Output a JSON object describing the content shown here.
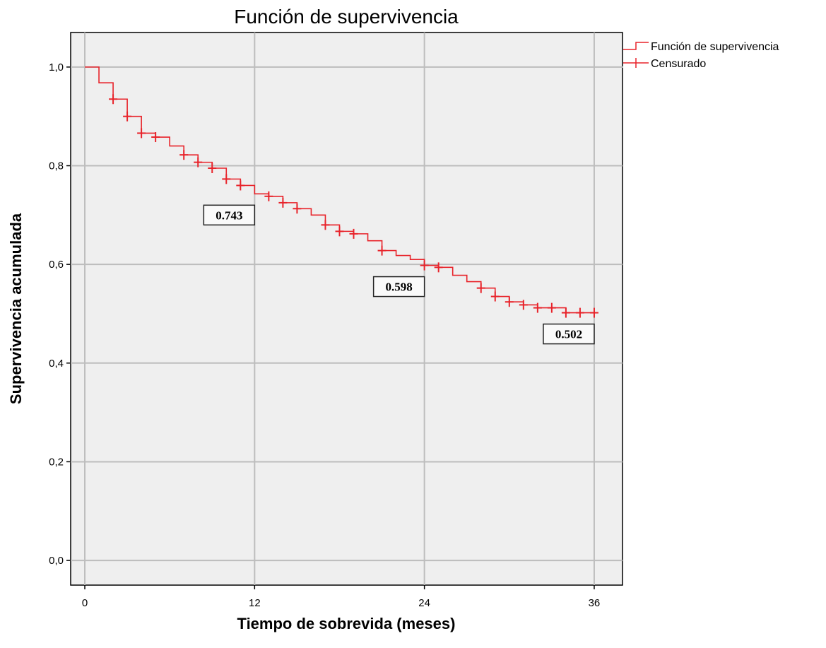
{
  "chart_data": {
    "type": "line",
    "title": "Función de supervivencia",
    "xlabel": "Tiempo de sobrevida (meses)",
    "ylabel": "Supervivencia acumulada",
    "xlim": [
      -1,
      38
    ],
    "ylim": [
      -0.05,
      1.07
    ],
    "x_ticks": [
      0,
      12,
      24,
      36
    ],
    "x_tick_labels": [
      "0",
      "12",
      "24",
      "36"
    ],
    "y_ticks": [
      0.0,
      0.2,
      0.4,
      0.6,
      0.8,
      1.0
    ],
    "y_tick_labels": [
      "0,0",
      "0,2",
      "0,4",
      "0,6",
      "0,8",
      "1,0"
    ],
    "grid": true,
    "legend_position": "outside-top-right",
    "series_color": "#e8232a",
    "plot_background": "#efefef",
    "legend": [
      {
        "label": "Función de supervivencia",
        "symbol": "step"
      },
      {
        "label": "Censurado",
        "symbol": "cross"
      }
    ],
    "survival_steps": [
      {
        "x": 0,
        "y": 1.0
      },
      {
        "x": 1,
        "y": 0.968
      },
      {
        "x": 2,
        "y": 0.935
      },
      {
        "x": 3,
        "y": 0.9
      },
      {
        "x": 4,
        "y": 0.866
      },
      {
        "x": 5,
        "y": 0.858
      },
      {
        "x": 6,
        "y": 0.84
      },
      {
        "x": 7,
        "y": 0.822
      },
      {
        "x": 8,
        "y": 0.807
      },
      {
        "x": 9,
        "y": 0.795
      },
      {
        "x": 10,
        "y": 0.773
      },
      {
        "x": 11,
        "y": 0.76
      },
      {
        "x": 12,
        "y": 0.743
      },
      {
        "x": 13,
        "y": 0.738
      },
      {
        "x": 14,
        "y": 0.725
      },
      {
        "x": 15,
        "y": 0.713
      },
      {
        "x": 16,
        "y": 0.7
      },
      {
        "x": 17,
        "y": 0.68
      },
      {
        "x": 18,
        "y": 0.667
      },
      {
        "x": 19,
        "y": 0.662
      },
      {
        "x": 20,
        "y": 0.648
      },
      {
        "x": 21,
        "y": 0.628
      },
      {
        "x": 22,
        "y": 0.618
      },
      {
        "x": 23,
        "y": 0.61
      },
      {
        "x": 24,
        "y": 0.598
      },
      {
        "x": 25,
        "y": 0.594
      },
      {
        "x": 26,
        "y": 0.578
      },
      {
        "x": 27,
        "y": 0.565
      },
      {
        "x": 28,
        "y": 0.552
      },
      {
        "x": 29,
        "y": 0.535
      },
      {
        "x": 30,
        "y": 0.524
      },
      {
        "x": 31,
        "y": 0.518
      },
      {
        "x": 32,
        "y": 0.512
      },
      {
        "x": 33,
        "y": 0.512
      },
      {
        "x": 34,
        "y": 0.502
      },
      {
        "x": 36,
        "y": 0.502
      }
    ],
    "censored_points": [
      {
        "x": 2,
        "y": 0.935
      },
      {
        "x": 3,
        "y": 0.9
      },
      {
        "x": 4,
        "y": 0.866
      },
      {
        "x": 5,
        "y": 0.858
      },
      {
        "x": 7,
        "y": 0.822
      },
      {
        "x": 8,
        "y": 0.807
      },
      {
        "x": 9,
        "y": 0.795
      },
      {
        "x": 10,
        "y": 0.773
      },
      {
        "x": 11,
        "y": 0.76
      },
      {
        "x": 13,
        "y": 0.738
      },
      {
        "x": 14,
        "y": 0.725
      },
      {
        "x": 15,
        "y": 0.713
      },
      {
        "x": 17,
        "y": 0.68
      },
      {
        "x": 18,
        "y": 0.667
      },
      {
        "x": 19,
        "y": 0.662
      },
      {
        "x": 21,
        "y": 0.628
      },
      {
        "x": 24,
        "y": 0.598
      },
      {
        "x": 25,
        "y": 0.594
      },
      {
        "x": 28,
        "y": 0.552
      },
      {
        "x": 29,
        "y": 0.535
      },
      {
        "x": 30,
        "y": 0.524
      },
      {
        "x": 31,
        "y": 0.518
      },
      {
        "x": 32,
        "y": 0.512
      },
      {
        "x": 33,
        "y": 0.512
      },
      {
        "x": 34,
        "y": 0.502
      },
      {
        "x": 35,
        "y": 0.502
      },
      {
        "x": 36,
        "y": 0.502
      }
    ],
    "annotations": [
      {
        "label": "0.743",
        "at_x": 12,
        "value": 0.743
      },
      {
        "label": "0.598",
        "at_x": 24,
        "value": 0.598
      },
      {
        "label": "0.502",
        "at_x": 36,
        "value": 0.502
      }
    ]
  }
}
